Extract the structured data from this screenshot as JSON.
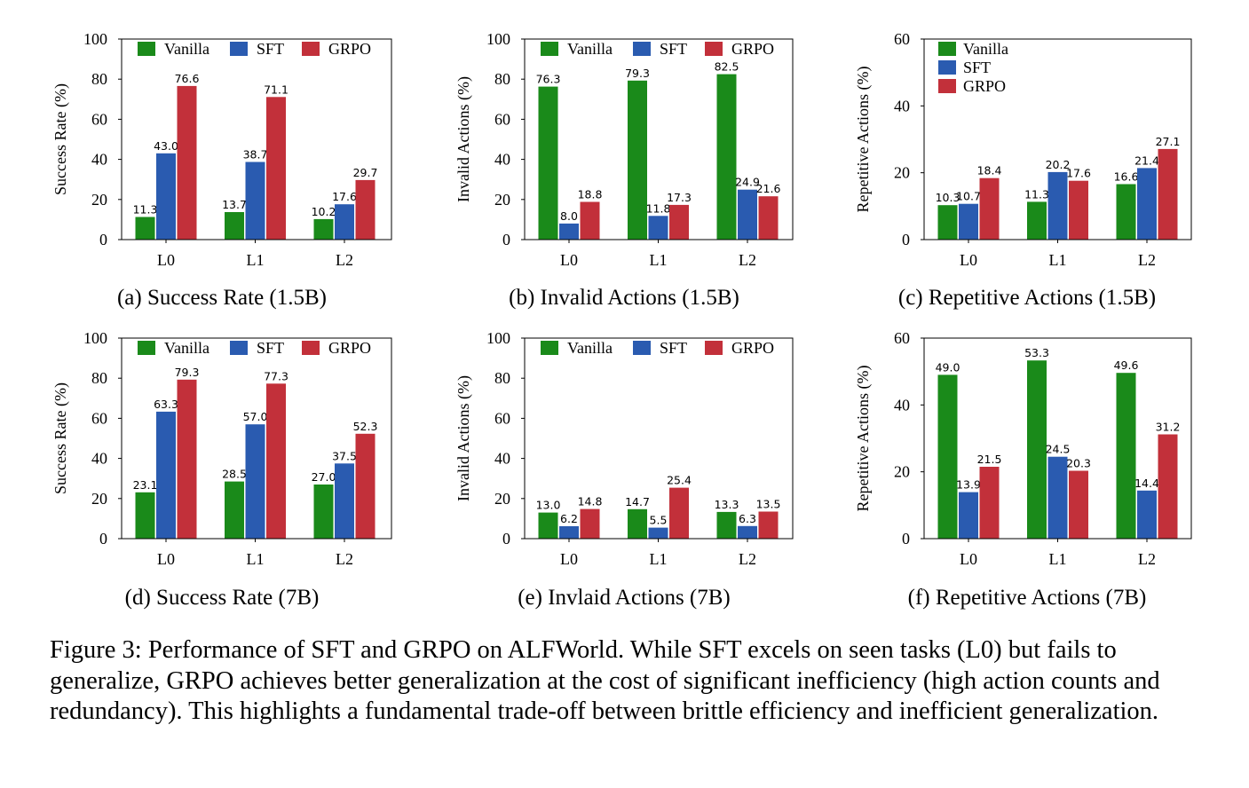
{
  "colors": {
    "Vanilla": "#1a8a1a",
    "SFT": "#2a5bb0",
    "GRPO": "#c2303a"
  },
  "chart_data": [
    {
      "type": "bar",
      "caption": "(a) Success Rate (1.5B)",
      "categories": [
        "L0",
        "L1",
        "L2"
      ],
      "ylabel": "Success Rate (%)",
      "ylim": [
        0,
        100
      ],
      "yticks": [
        0,
        20,
        40,
        60,
        80,
        100
      ],
      "legend": "top-row",
      "series": [
        {
          "name": "Vanilla",
          "values": [
            11.3,
            13.7,
            10.2
          ],
          "labels": [
            "11.3",
            "13.7",
            "10.2"
          ]
        },
        {
          "name": "SFT",
          "values": [
            43.0,
            38.7,
            17.6
          ],
          "labels": [
            "43.0",
            "38.7",
            "17.6"
          ]
        },
        {
          "name": "GRPO",
          "values": [
            76.6,
            71.1,
            29.7
          ],
          "labels": [
            "76.6",
            "71.1",
            "29.7"
          ]
        }
      ]
    },
    {
      "type": "bar",
      "caption": "(b) Invalid Actions (1.5B)",
      "categories": [
        "L0",
        "L1",
        "L2"
      ],
      "ylabel": "Invalid Actions (%)",
      "ylim": [
        0,
        100
      ],
      "yticks": [
        0,
        20,
        40,
        60,
        80,
        100
      ],
      "legend": "top-row",
      "series": [
        {
          "name": "Vanilla",
          "values": [
            76.3,
            79.3,
            82.5
          ],
          "labels": [
            "76.3",
            "79.3",
            "82.5"
          ]
        },
        {
          "name": "SFT",
          "values": [
            8.0,
            11.8,
            24.9
          ],
          "labels": [
            "8.0",
            "11.8",
            "24.9"
          ]
        },
        {
          "name": "GRPO",
          "values": [
            18.8,
            17.3,
            21.6
          ],
          "labels": [
            "18.8",
            "17.3",
            "21.6"
          ]
        }
      ]
    },
    {
      "type": "bar",
      "caption": "(c) Repetitive Actions (1.5B)",
      "categories": [
        "L0",
        "L1",
        "L2"
      ],
      "ylabel": "Repetitive Actions (%)",
      "ylim": [
        0,
        60
      ],
      "yticks": [
        0,
        20,
        40,
        60
      ],
      "legend": "top-left",
      "series": [
        {
          "name": "Vanilla",
          "values": [
            10.3,
            11.3,
            16.6
          ],
          "labels": [
            "10.3",
            "11.3",
            "16.6"
          ]
        },
        {
          "name": "SFT",
          "values": [
            10.7,
            20.2,
            21.4
          ],
          "labels": [
            "10.7",
            "20.2",
            "21.4"
          ]
        },
        {
          "name": "GRPO",
          "values": [
            18.4,
            17.6,
            27.1
          ],
          "labels": [
            "18.4",
            "17.6",
            "27.1"
          ]
        }
      ]
    },
    {
      "type": "bar",
      "caption": "(d) Success Rate (7B)",
      "categories": [
        "L0",
        "L1",
        "L2"
      ],
      "ylabel": "Success Rate (%)",
      "ylim": [
        0,
        100
      ],
      "yticks": [
        0,
        20,
        40,
        60,
        80,
        100
      ],
      "legend": "top-row",
      "series": [
        {
          "name": "Vanilla",
          "values": [
            23.1,
            28.5,
            27.0
          ],
          "labels": [
            "23.1",
            "28.5",
            "27.0"
          ]
        },
        {
          "name": "SFT",
          "values": [
            63.3,
            57.0,
            37.5
          ],
          "labels": [
            "63.3",
            "57.0",
            "37.5"
          ]
        },
        {
          "name": "GRPO",
          "values": [
            79.3,
            77.3,
            52.3
          ],
          "labels": [
            "79.3",
            "77.3",
            "52.3"
          ]
        }
      ]
    },
    {
      "type": "bar",
      "caption": "(e) Invlaid Actions (7B)",
      "categories": [
        "L0",
        "L1",
        "L2"
      ],
      "ylabel": "Invalid Actions (%)",
      "ylim": [
        0,
        100
      ],
      "yticks": [
        0,
        20,
        40,
        60,
        80,
        100
      ],
      "legend": "top-row",
      "series": [
        {
          "name": "Vanilla",
          "values": [
            13.0,
            14.7,
            13.3
          ],
          "labels": [
            "13.0",
            "14.7",
            "13.3"
          ]
        },
        {
          "name": "SFT",
          "values": [
            6.2,
            5.5,
            6.3
          ],
          "labels": [
            "6.2",
            "5.5",
            "6.3"
          ]
        },
        {
          "name": "GRPO",
          "values": [
            14.8,
            25.4,
            13.5
          ],
          "labels": [
            "14.8",
            "25.4",
            "13.5"
          ]
        }
      ]
    },
    {
      "type": "bar",
      "caption": "(f) Repetitive Actions (7B)",
      "categories": [
        "L0",
        "L1",
        "L2"
      ],
      "ylabel": "Repetitive Actions (%)",
      "ylim": [
        0,
        60
      ],
      "yticks": [
        0,
        20,
        40,
        60
      ],
      "legend": "none",
      "series": [
        {
          "name": "Vanilla",
          "values": [
            49.0,
            53.3,
            49.6
          ],
          "labels": [
            "49.0",
            "53.3",
            "49.6"
          ]
        },
        {
          "name": "SFT",
          "values": [
            13.9,
            24.5,
            14.4
          ],
          "labels": [
            "13.9",
            "24.5",
            "14.4"
          ]
        },
        {
          "name": "GRPO",
          "values": [
            21.5,
            20.3,
            31.2
          ],
          "labels": [
            "21.5",
            "20.3",
            "31.2"
          ]
        }
      ]
    }
  ],
  "figure_caption": "Figure 3: Performance of SFT and GRPO on ALFWorld. While SFT excels on seen tasks (L0) but fails to generalize, GRPO achieves better generalization at the cost of significant inefficiency (high action counts and redundancy). This highlights a fundamental trade-off between brittle efficiency and inefficient generalization."
}
